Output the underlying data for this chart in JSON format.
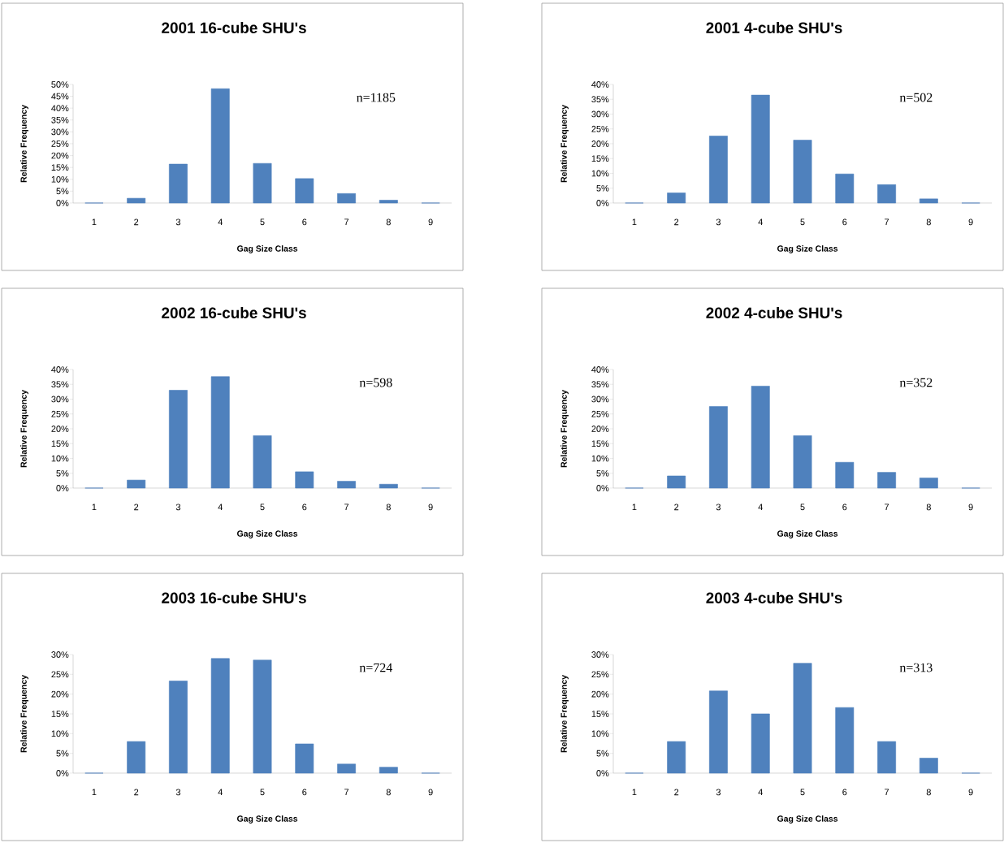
{
  "chart_data": [
    {
      "type": "bar",
      "title": "2001 16-cube SHU's",
      "xlabel": "Gag Size Class",
      "ylabel": "Relative Frequency",
      "categories": [
        "1",
        "2",
        "3",
        "4",
        "5",
        "6",
        "7",
        "8",
        "9"
      ],
      "values": [
        0,
        2.0,
        16.4,
        48.2,
        16.7,
        10.3,
        4.0,
        1.2,
        0
      ],
      "color": "#4f81bd",
      "ylim": [
        0,
        50
      ],
      "yticks": [
        {
          "value": 0,
          "label": "0%"
        },
        {
          "value": 5,
          "label": "5%"
        },
        {
          "value": 10,
          "label": "10%"
        },
        {
          "value": 15,
          "label": "15%"
        },
        {
          "value": 20,
          "label": "20%"
        },
        {
          "value": 25,
          "label": "25%"
        },
        {
          "value": 30,
          "label": "30%"
        },
        {
          "value": 35,
          "label": "35%"
        },
        {
          "value": 40,
          "label": "40%"
        },
        {
          "value": 45,
          "label": "45%"
        },
        {
          "value": 50,
          "label": "50%"
        }
      ],
      "annotations": [
        "n=1185"
      ]
    },
    {
      "type": "bar",
      "title": "2001 4-cube SHU's",
      "xlabel": "Gag Size Class",
      "ylabel": "Relative Frequency",
      "categories": [
        "1",
        "2",
        "3",
        "4",
        "5",
        "6",
        "7",
        "8",
        "9"
      ],
      "values": [
        0,
        3.4,
        22.6,
        36.4,
        21.2,
        9.8,
        6.2,
        1.4,
        0
      ],
      "color": "#4f81bd",
      "ylim": [
        0,
        40
      ],
      "yticks": [
        {
          "value": 0,
          "label": "0%"
        },
        {
          "value": 5,
          "label": "5%"
        },
        {
          "value": 10,
          "label": "10%"
        },
        {
          "value": 15,
          "label": "15%"
        },
        {
          "value": 20,
          "label": "20%"
        },
        {
          "value": 25,
          "label": "25%"
        },
        {
          "value": 30,
          "label": "30%"
        },
        {
          "value": 35,
          "label": "35%"
        },
        {
          "value": 40,
          "label": "40%"
        }
      ],
      "annotations": [
        "n=502"
      ]
    },
    {
      "type": "bar",
      "title": "2002 16-cube SHU's",
      "xlabel": "Gag Size Class",
      "ylabel": "Relative Frequency",
      "categories": [
        "1",
        "2",
        "3",
        "4",
        "5",
        "6",
        "7",
        "8",
        "9"
      ],
      "values": [
        0,
        2.7,
        33.0,
        37.6,
        17.7,
        5.5,
        2.3,
        1.3,
        0
      ],
      "color": "#4f81bd",
      "ylim": [
        0,
        40
      ],
      "yticks": [
        {
          "value": 0,
          "label": "0%"
        },
        {
          "value": 5,
          "label": "5%"
        },
        {
          "value": 10,
          "label": "10%"
        },
        {
          "value": 15,
          "label": "15%"
        },
        {
          "value": 20,
          "label": "20%"
        },
        {
          "value": 25,
          "label": "25%"
        },
        {
          "value": 30,
          "label": "30%"
        },
        {
          "value": 35,
          "label": "35%"
        },
        {
          "value": 40,
          "label": "40%"
        }
      ],
      "annotations": [
        "n=598"
      ]
    },
    {
      "type": "bar",
      "title": "2002 4-cube SHU's",
      "xlabel": "Gag Size Class",
      "ylabel": "Relative Frequency",
      "categories": [
        "1",
        "2",
        "3",
        "4",
        "5",
        "6",
        "7",
        "8",
        "9"
      ],
      "values": [
        0,
        4.1,
        27.5,
        34.4,
        17.7,
        8.7,
        5.3,
        3.4,
        0
      ],
      "color": "#4f81bd",
      "ylim": [
        0,
        40
      ],
      "yticks": [
        {
          "value": 0,
          "label": "0%"
        },
        {
          "value": 5,
          "label": "5%"
        },
        {
          "value": 10,
          "label": "10%"
        },
        {
          "value": 15,
          "label": "15%"
        },
        {
          "value": 20,
          "label": "20%"
        },
        {
          "value": 25,
          "label": "25%"
        },
        {
          "value": 30,
          "label": "30%"
        },
        {
          "value": 35,
          "label": "35%"
        },
        {
          "value": 40,
          "label": "40%"
        }
      ],
      "annotations": [
        "n=352"
      ]
    },
    {
      "type": "bar",
      "title": "2003 16-cube SHU's",
      "xlabel": "Gag Size Class",
      "ylabel": "Relative Frequency",
      "categories": [
        "1",
        "2",
        "3",
        "4",
        "5",
        "6",
        "7",
        "8",
        "9"
      ],
      "values": [
        0,
        8.0,
        23.3,
        29.0,
        28.6,
        7.4,
        2.3,
        1.5,
        0
      ],
      "color": "#4f81bd",
      "ylim": [
        0,
        30
      ],
      "yticks": [
        {
          "value": 0,
          "label": "0%"
        },
        {
          "value": 5,
          "label": "5%"
        },
        {
          "value": 10,
          "label": "10%"
        },
        {
          "value": 15,
          "label": "15%"
        },
        {
          "value": 20,
          "label": "20%"
        },
        {
          "value": 25,
          "label": "25%"
        },
        {
          "value": 30,
          "label": "30%"
        }
      ],
      "annotations": [
        "n=724"
      ]
    },
    {
      "type": "bar",
      "title": "2003 4-cube SHU's",
      "xlabel": "Gag Size Class",
      "ylabel": "Relative Frequency",
      "categories": [
        "1",
        "2",
        "3",
        "4",
        "5",
        "6",
        "7",
        "8",
        "9"
      ],
      "values": [
        0,
        8.0,
        20.8,
        15.0,
        27.8,
        16.6,
        8.0,
        3.8,
        0
      ],
      "color": "#4f81bd",
      "ylim": [
        0,
        30
      ],
      "yticks": [
        {
          "value": 0,
          "label": "0%"
        },
        {
          "value": 5,
          "label": "5%"
        },
        {
          "value": 10,
          "label": "10%"
        },
        {
          "value": 15,
          "label": "15%"
        },
        {
          "value": 20,
          "label": "20%"
        },
        {
          "value": 25,
          "label": "25%"
        },
        {
          "value": 30,
          "label": "30%"
        }
      ],
      "annotations": [
        "n=313"
      ]
    }
  ]
}
